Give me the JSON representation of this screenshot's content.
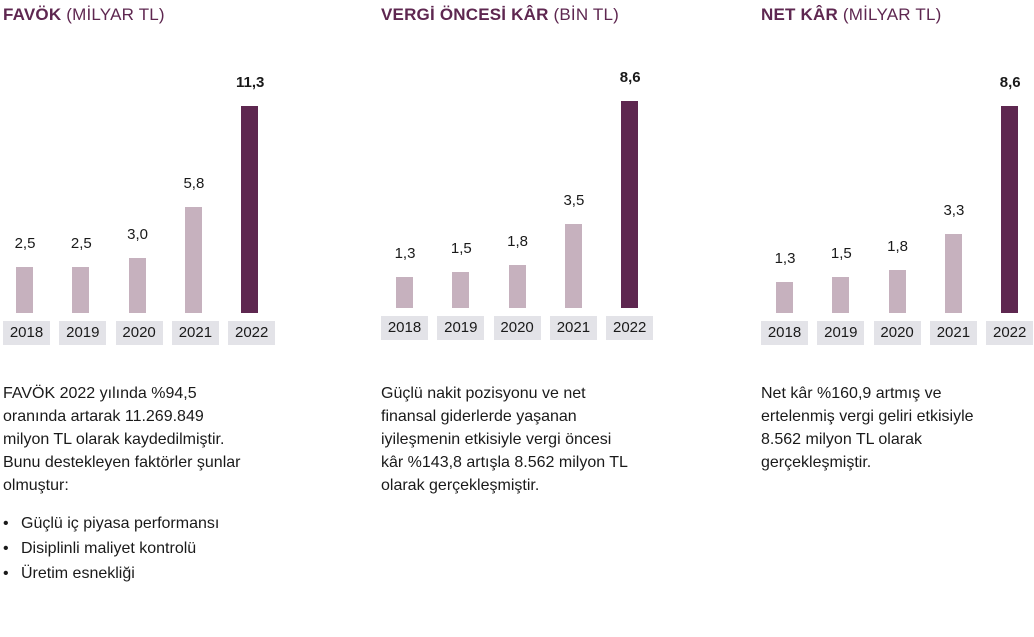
{
  "colors": {
    "highlight": "#5e2750",
    "normal": "#c6b1be",
    "year_bg": "#e3e3e8"
  },
  "chart_data": [
    {
      "type": "bar",
      "title": "FAVÖK",
      "unit": "(MİLYAR TL)",
      "categories": [
        "2018",
        "2019",
        "2020",
        "2021",
        "2022"
      ],
      "values": [
        2.5,
        2.5,
        3.0,
        5.8,
        11.3
      ],
      "labels": [
        "2,5",
        "2,5",
        "3,0",
        "5,8",
        "11,3"
      ],
      "highlight": "2022",
      "ylim": [
        0,
        11.3
      ]
    },
    {
      "type": "bar",
      "title": "VERGİ ÖNCESİ KÂR",
      "unit": "(BİN TL)",
      "categories": [
        "2018",
        "2019",
        "2020",
        "2021",
        "2022"
      ],
      "values": [
        1.3,
        1.5,
        1.8,
        3.5,
        8.6
      ],
      "labels": [
        "1,3",
        "1,5",
        "1,8",
        "3,5",
        "8,6"
      ],
      "highlight": "2022",
      "ylim": [
        0,
        8.6
      ]
    },
    {
      "type": "bar",
      "title": "NET KÂR",
      "unit": "(MİLYAR TL)",
      "categories": [
        "2018",
        "2019",
        "2020",
        "2021",
        "2022"
      ],
      "values": [
        1.3,
        1.5,
        1.8,
        3.3,
        8.6
      ],
      "labels": [
        "1,3",
        "1,5",
        "1,8",
        "3,3",
        "8,6"
      ],
      "highlight": "2022",
      "ylim": [
        0,
        8.6
      ]
    }
  ],
  "descriptions": [
    {
      "lines": [
        "FAVÖK 2022 yılında %94,5",
        "oranında artarak 11.269.849",
        "milyon TL olarak kaydedilmiştir.",
        "Bunu destekleyen faktörler şunlar",
        "olmuştur:"
      ],
      "bullet": "•",
      "bullets": [
        "Güçlü iç piyasa performansı",
        "Disiplinli maliyet kontrolü",
        "Üretim esnekliği"
      ]
    },
    {
      "lines": [
        "Güçlü nakit pozisyonu ve net",
        "finansal giderlerde yaşanan",
        "iyileşmenin etkisiyle vergi öncesi",
        "kâr %143,8 artışla 8.562 milyon TL",
        "olarak gerçekleşmiştir."
      ]
    },
    {
      "lines": [
        "Net kâr %160,9 artmış ve",
        "ertelenmiş vergi geliri etkisiyle",
        "8.562 milyon TL olarak",
        "gerçekleşmiştir."
      ]
    }
  ]
}
